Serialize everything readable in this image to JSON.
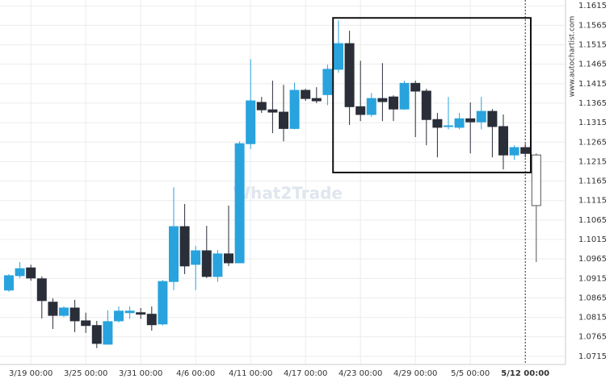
{
  "chart_data": {
    "type": "candlestick",
    "watermark": "What2Trade",
    "source": "www.autochartist.com",
    "categories": [
      null,
      null,
      "3/19 00:00",
      null,
      null,
      null,
      null,
      "3/25 00:00",
      null,
      null,
      null,
      null,
      "3/31 00:00",
      null,
      null,
      null,
      null,
      "4/6 00:00",
      null,
      null,
      null,
      null,
      "4/11 00:00",
      null,
      null,
      null,
      null,
      "4/17 00:00",
      null,
      null,
      null,
      null,
      "4/23 00:00",
      null,
      null,
      null,
      null,
      "4/29 00:00",
      null,
      null,
      null,
      null,
      "5/5 00:00",
      null,
      null,
      null,
      null,
      "5/12 00:00",
      null
    ],
    "highlight_category": "5/12 00:00",
    "open": [
      1.0885,
      1.0922,
      1.0942,
      1.0914,
      1.0854,
      1.082,
      1.0839,
      1.0806,
      1.0794,
      1.0746,
      1.0806,
      1.0827,
      1.0827,
      1.0823,
      1.0798,
      1.0907,
      1.1048,
      1.0951,
      1.0986,
      1.092,
      1.0978,
      1.0955,
      1.1261,
      1.1367,
      1.1348,
      1.1342,
      1.13,
      1.1398,
      1.1377,
      1.1387,
      1.1452,
      1.1518,
      1.1356,
      1.1336,
      1.1377,
      1.1381,
      1.135,
      1.1416,
      1.1396,
      1.1323,
      1.1305,
      1.1303,
      1.1325,
      1.1317,
      1.1344,
      1.1305,
      1.1232,
      1.1251,
      1.1232
    ],
    "high": [
      1.0926,
      1.0957,
      1.095,
      1.092,
      1.0864,
      1.0843,
      1.086,
      1.0827,
      1.0806,
      1.0833,
      1.0843,
      1.0843,
      1.0839,
      1.0843,
      1.0911,
      1.1149,
      1.1106,
      1.0998,
      1.105,
      1.0988,
      1.1102,
      1.1267,
      1.1478,
      1.1381,
      1.1423,
      1.1412,
      1.1418,
      1.1402,
      1.1406,
      1.1464,
      1.1578,
      1.1551,
      1.1474,
      1.1391,
      1.1468,
      1.1385,
      1.1423,
      1.1423,
      1.1402,
      1.134,
      1.1381,
      1.134,
      1.1367,
      1.1381,
      1.135,
      1.1336,
      1.1257,
      1.1261,
      1.1236
    ],
    "low": [
      1.0881,
      1.0916,
      1.0909,
      1.0812,
      1.0785,
      1.0816,
      1.0777,
      1.0775,
      1.0736,
      1.0746,
      1.0802,
      1.0811,
      1.0811,
      1.0781,
      1.0794,
      1.0885,
      1.0926,
      1.0885,
      1.0916,
      1.0906,
      1.0947,
      1.0955,
      1.1247,
      1.134,
      1.1288,
      1.1267,
      1.1298,
      1.1371,
      1.1365,
      1.136,
      1.1443,
      1.1309,
      1.1319,
      1.133,
      1.1319,
      1.1319,
      1.1348,
      1.1278,
      1.1257,
      1.1226,
      1.1298,
      1.1298,
      1.1236,
      1.1298,
      1.1226,
      1.1195,
      1.122,
      1.1226,
      1.0957
    ],
    "close": [
      1.0922,
      1.094,
      1.0916,
      1.0858,
      1.082,
      1.0839,
      1.0806,
      1.0794,
      1.0748,
      1.0804,
      1.0831,
      1.0831,
      1.0823,
      1.0796,
      1.0907,
      1.1048,
      1.0947,
      1.0986,
      1.092,
      1.0978,
      1.0955,
      1.1261,
      1.1371,
      1.1348,
      1.1342,
      1.13,
      1.1398,
      1.1377,
      1.1371,
      1.1452,
      1.1518,
      1.1356,
      1.1336,
      1.1377,
      1.1369,
      1.135,
      1.1416,
      1.1396,
      1.1323,
      1.1303,
      1.1307,
      1.1325,
      1.1317,
      1.1344,
      1.1305,
      1.1232,
      1.1251,
      1.1236,
      1.1102
    ],
    "colors": {
      "up": "#29a3dd",
      "down": "#2a2e39",
      "current": "#ffffff"
    },
    "box": {
      "from": 30,
      "to": 47,
      "high": 1.1584,
      "low": 1.1187
    },
    "ylim": [
      1.0694,
      1.163
    ],
    "yticks": [
      1.0715,
      1.0765,
      1.0815,
      1.0865,
      1.0915,
      1.0965,
      1.1015,
      1.1065,
      1.1115,
      1.1165,
      1.1215,
      1.1265,
      1.1315,
      1.1365,
      1.1415,
      1.1465,
      1.1515,
      1.1565,
      1.1615
    ],
    "grid": true
  }
}
